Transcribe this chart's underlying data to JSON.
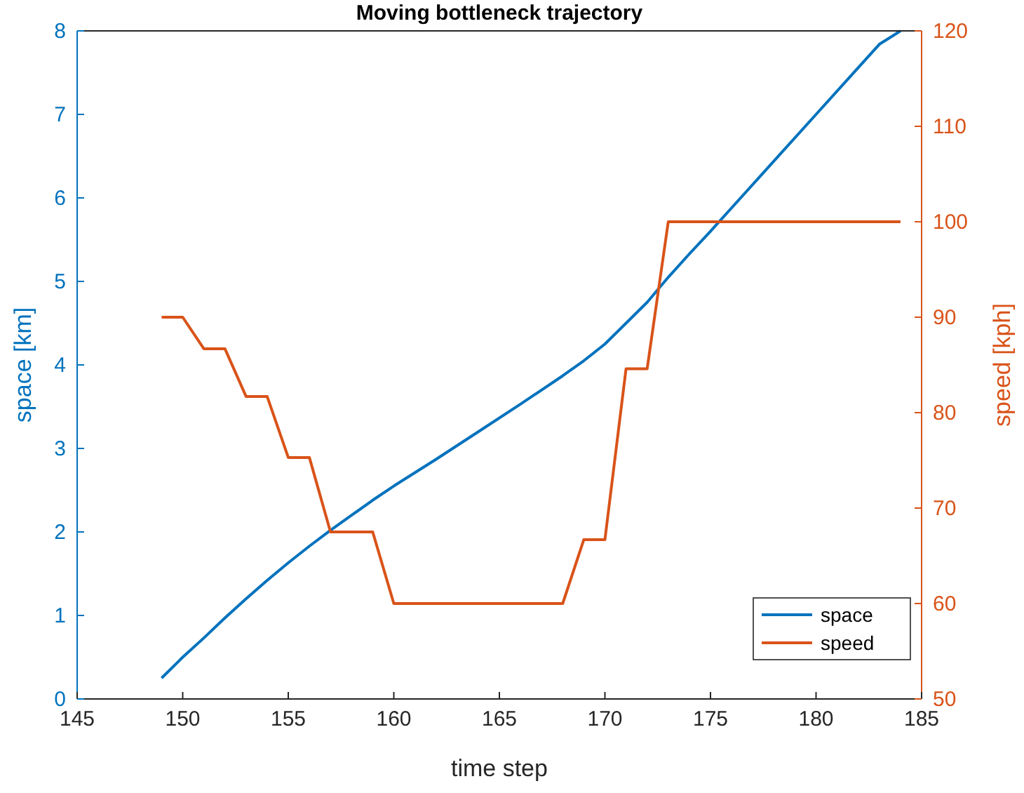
{
  "chart_data": {
    "type": "line",
    "title": "Moving bottleneck trajectory",
    "xlabel": "time step",
    "ylabel": "space [km]",
    "y2label": "speed [kph]",
    "xlim": [
      145,
      185
    ],
    "xticks": [
      145,
      150,
      155,
      160,
      165,
      170,
      175,
      180,
      185
    ],
    "ylim": [
      0,
      8
    ],
    "yticks": [
      0,
      1,
      2,
      3,
      4,
      5,
      6,
      7,
      8
    ],
    "y2lim": [
      50,
      120
    ],
    "y2ticks": [
      50,
      60,
      70,
      80,
      90,
      100,
      110,
      120
    ],
    "legend": "bottom right",
    "grid": false,
    "series": [
      {
        "name": "space",
        "color": "#0072bd",
        "x": [
          149,
          150,
          151,
          152,
          153,
          154,
          155,
          156,
          157,
          158,
          159,
          160,
          162,
          164,
          166,
          168,
          169,
          170,
          171,
          172,
          173,
          174,
          175,
          176,
          178,
          180,
          182,
          183,
          184
        ],
        "values": [
          0.25,
          0.5,
          0.73,
          0.97,
          1.2,
          1.42,
          1.63,
          1.83,
          2.02,
          2.2,
          2.38,
          2.55,
          2.87,
          3.2,
          3.53,
          3.87,
          4.05,
          4.25,
          4.5,
          4.75,
          5.05,
          5.33,
          5.6,
          5.88,
          6.44,
          7.0,
          7.56,
          7.84,
          8.0
        ]
      },
      {
        "name": "speed",
        "color": "#d95319",
        "axis": "y2",
        "x": [
          149,
          150,
          151,
          152,
          153,
          154,
          155,
          156,
          157,
          158,
          159,
          160,
          161,
          162,
          163,
          164,
          165,
          166,
          167,
          168,
          169,
          170,
          171,
          172,
          173,
          174,
          175,
          176,
          177,
          178,
          179,
          180,
          181,
          182,
          183,
          184
        ],
        "values": [
          90,
          90,
          86.7,
          86.7,
          81.7,
          81.7,
          75.3,
          75.3,
          67.5,
          67.5,
          67.5,
          60,
          60,
          60,
          60,
          60,
          60,
          60,
          60,
          60,
          66.7,
          66.7,
          84.6,
          84.6,
          100,
          100,
          100,
          100,
          100,
          100,
          100,
          100,
          100,
          100,
          100,
          100
        ]
      }
    ]
  }
}
